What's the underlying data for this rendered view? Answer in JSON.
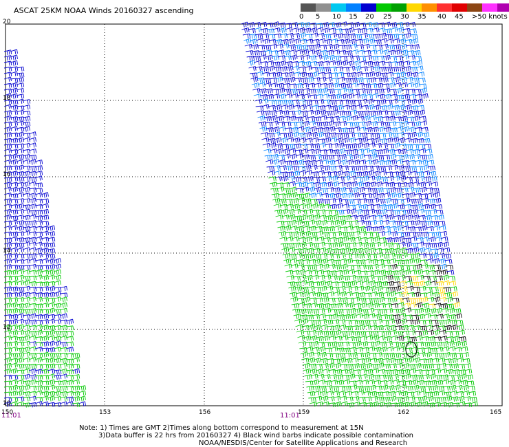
{
  "header": {
    "title": "ASCAT 25KM NOAA Winds 20160327 ascending"
  },
  "legend": {
    "colors": [
      "#555555",
      "#909090",
      "#00c8f0",
      "#0080ff",
      "#0000d0",
      "#00c800",
      "#00a000",
      "#ffd800",
      "#ff9000",
      "#ff3030",
      "#e00000",
      "#8b4513",
      "#ff30ff",
      "#b000b0",
      "#5a0078"
    ],
    "labels": [
      "0",
      "5",
      "10",
      "15",
      "20",
      "25",
      "30",
      "35",
      "40",
      "45",
      ">50 knots"
    ]
  },
  "map": {
    "lat_labels": [
      "20",
      "18",
      "16",
      "14",
      "12",
      "10"
    ],
    "lon_labels": [
      "150",
      "153",
      "156",
      "159",
      "162",
      "165"
    ],
    "time_labels": [
      "11:01",
      "11:01"
    ]
  },
  "notes": {
    "line1": "Note: 1) Times are GMT 2)Times along bottom correspond to measurement at 15N",
    "line2": "3)Data buffer is 22 hrs from 20160327 4) Black wind barbs indicate possible contamination",
    "line3": "NOAA/NESDIS/Center for Satellite Applications and Research"
  }
}
